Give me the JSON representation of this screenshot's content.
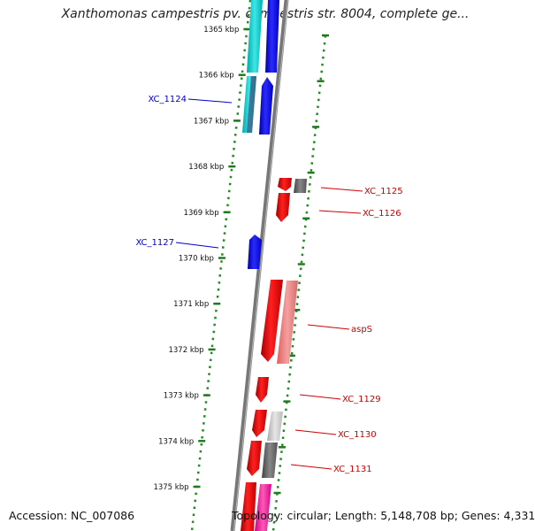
{
  "title": "Xanthomonas campestris pv. campestris str. 8004, complete ge...",
  "footer": {
    "accession": "Accession: NC_007086",
    "stats": "Topology: circular; Length: 5,148,708 bp; Genes: 4,331"
  },
  "tick_labels": [
    "1365 kbp",
    "1366 kbp",
    "1367 kbp",
    "1368 kbp",
    "1369 kbp",
    "1370 kbp",
    "1371 kbp",
    "1372 kbp",
    "1373 kbp",
    "1374 kbp",
    "1375 kbp"
  ],
  "gene_labels": [
    {
      "text": "XC_1124",
      "strand": "reverse"
    },
    {
      "text": "XC_1125",
      "strand": "forward"
    },
    {
      "text": "XC_1126",
      "strand": "forward"
    },
    {
      "text": "XC_1127",
      "strand": "reverse"
    },
    {
      "text": "aspS",
      "strand": "forward"
    },
    {
      "text": "XC_1129",
      "strand": "forward"
    },
    {
      "text": "XC_1130",
      "strand": "forward"
    },
    {
      "text": "XC_1131",
      "strand": "forward"
    }
  ],
  "colors": {
    "forward_strand": "#ff0000",
    "reverse_strand": "#0000ff",
    "forward_label": "#cc0000",
    "reverse_label": "#0000cc",
    "gc_dots": "#228B22",
    "backbone": "#777777"
  }
}
